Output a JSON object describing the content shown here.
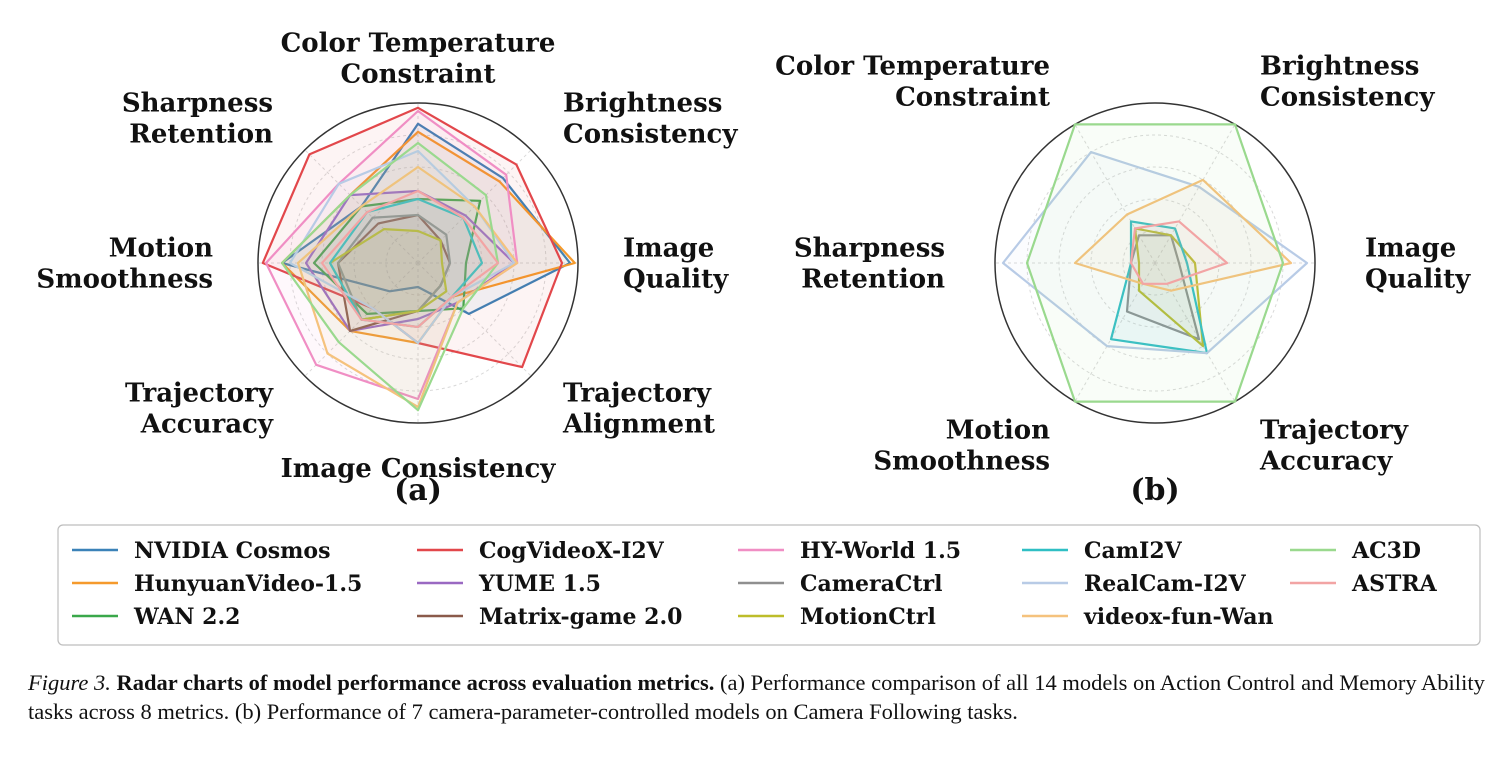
{
  "chart_data": [
    {
      "type": "radar",
      "panel_label": "(a)",
      "axes": [
        "Color Temperature\nConstraint",
        "Brightness\nConsistency",
        "Image\nQuality",
        "Trajectory\nAlignment",
        "Image Consistency",
        "Trajectory\nAccuracy",
        "Motion\nSmoothness",
        "Sharpness\nRetention"
      ],
      "rlim": [
        0,
        1
      ],
      "grid": true,
      "series": [
        {
          "name": "NVIDIA Cosmos",
          "color": "#3b82b8",
          "values": [
            0.87,
            0.75,
            0.95,
            0.45,
            0.15,
            0.25,
            0.85,
            0.5
          ]
        },
        {
          "name": "HunyuanVideo-1.5",
          "color": "#f59a2c",
          "values": [
            0.82,
            0.72,
            0.98,
            0.3,
            0.5,
            0.6,
            0.85,
            0.6
          ]
        },
        {
          "name": "WAN 2.2",
          "color": "#3aa84a",
          "values": [
            0.4,
            0.55,
            0.3,
            0.4,
            0.3,
            0.45,
            0.65,
            0.5
          ]
        },
        {
          "name": "CogVideoX-I2V",
          "color": "#e2474b",
          "values": [
            0.97,
            0.87,
            0.9,
            0.92,
            0.5,
            0.4,
            0.97,
            0.96
          ]
        },
        {
          "name": "YUME 1.5",
          "color": "#9a69c2",
          "values": [
            0.45,
            0.42,
            0.6,
            0.35,
            0.35,
            0.6,
            0.7,
            0.6
          ]
        },
        {
          "name": "Matrix-game 2.0",
          "color": "#8a5a4a",
          "values": [
            0.3,
            0.2,
            0.2,
            0.2,
            0.3,
            0.6,
            0.5,
            0.35
          ]
        },
        {
          "name": "HY-World 1.5",
          "color": "#f08ec4",
          "values": [
            0.95,
            0.78,
            0.62,
            0.35,
            0.85,
            0.9,
            0.95,
            0.7
          ]
        },
        {
          "name": "CameraCtrl",
          "color": "#8f8f8f",
          "values": [
            0.3,
            0.25,
            0.2,
            0.2,
            0.3,
            0.5,
            0.5,
            0.4
          ]
        },
        {
          "name": "MotionCtrl",
          "color": "#bdbd2a",
          "values": [
            0.2,
            0.2,
            0.15,
            0.25,
            0.3,
            0.5,
            0.55,
            0.3
          ]
        },
        {
          "name": "CamI2V",
          "color": "#2fbfc4",
          "values": [
            0.4,
            0.4,
            0.4,
            0.3,
            0.4,
            0.5,
            0.55,
            0.45
          ]
        },
        {
          "name": "RealCam-I2V",
          "color": "#b8cbe6",
          "values": [
            0.7,
            0.5,
            0.6,
            0.3,
            0.5,
            0.4,
            0.8,
            0.7
          ]
        },
        {
          "name": "videox-fun-Wan",
          "color": "#f5c27d",
          "values": [
            0.6,
            0.5,
            0.62,
            0.35,
            0.9,
            0.8,
            0.75,
            0.5
          ]
        },
        {
          "name": "AC3D",
          "color": "#9ad98e",
          "values": [
            0.75,
            0.6,
            0.5,
            0.4,
            0.92,
            0.7,
            0.85,
            0.6
          ]
        },
        {
          "name": "ASTRA",
          "color": "#f2a4a4",
          "values": [
            0.45,
            0.4,
            0.5,
            0.3,
            0.4,
            0.5,
            0.6,
            0.45
          ]
        }
      ]
    },
    {
      "type": "radar",
      "panel_label": "(b)",
      "axes": [
        "Brightness\nConsistency",
        "Image\nQuality",
        "Trajectory\nAccuracy",
        "Motion\nSmoothness",
        "Sharpness\nRetention",
        "Color Temperature\nConstraint"
      ],
      "rlim": [
        0,
        1
      ],
      "grid": true,
      "series": [
        {
          "name": "CameraCtrl",
          "color": "#8f8f8f",
          "values": [
            0.2,
            0.15,
            0.55,
            0.35,
            0.15,
            0.2
          ]
        },
        {
          "name": "MotionCtrl",
          "color": "#bdbd2a",
          "values": [
            0.2,
            0.25,
            0.6,
            0.2,
            0.1,
            0.25
          ]
        },
        {
          "name": "CamI2V",
          "color": "#2fbfc4",
          "values": [
            0.25,
            0.2,
            0.65,
            0.55,
            0.15,
            0.3
          ]
        },
        {
          "name": "RealCam-I2V",
          "color": "#b8cbe6",
          "values": [
            0.55,
            0.95,
            0.65,
            0.6,
            0.95,
            0.8
          ]
        },
        {
          "name": "videox-fun-Wan",
          "color": "#f5c27d",
          "values": [
            0.6,
            0.85,
            0.2,
            0.15,
            0.5,
            0.35
          ]
        },
        {
          "name": "AC3D",
          "color": "#9ad98e",
          "values": [
            1.0,
            0.8,
            1.0,
            1.0,
            0.8,
            1.0
          ]
        },
        {
          "name": "ASTRA",
          "color": "#f2a4a4",
          "values": [
            0.3,
            0.45,
            0.15,
            0.15,
            0.15,
            0.25
          ]
        }
      ]
    }
  ],
  "legend": {
    "entries": [
      {
        "name": "NVIDIA Cosmos",
        "color": "#3b82b8"
      },
      {
        "name": "HunyuanVideo-1.5",
        "color": "#f59a2c"
      },
      {
        "name": "WAN 2.2",
        "color": "#3aa84a"
      },
      {
        "name": "CogVideoX-I2V",
        "color": "#e2474b"
      },
      {
        "name": "YUME 1.5",
        "color": "#9a69c2"
      },
      {
        "name": "Matrix-game 2.0",
        "color": "#8a5a4a"
      },
      {
        "name": "HY-World 1.5",
        "color": "#f08ec4"
      },
      {
        "name": "CameraCtrl",
        "color": "#8f8f8f"
      },
      {
        "name": "MotionCtrl",
        "color": "#bdbd2a"
      },
      {
        "name": "CamI2V",
        "color": "#2fbfc4"
      },
      {
        "name": "RealCam-I2V",
        "color": "#b8cbe6"
      },
      {
        "name": "videox-fun-Wan",
        "color": "#f5c27d"
      },
      {
        "name": "AC3D",
        "color": "#9ad98e"
      },
      {
        "name": "ASTRA",
        "color": "#f2a4a4"
      }
    ]
  },
  "caption": {
    "figure_number": "Figure 3.",
    "title": "Radar charts of model performance across evaluation metrics.",
    "body": "(a) Performance comparison of all 14 models on Action Control and Memory Ability tasks across 8 metrics. (b) Performance of 7 camera-parameter-controlled models on Camera Following tasks."
  }
}
